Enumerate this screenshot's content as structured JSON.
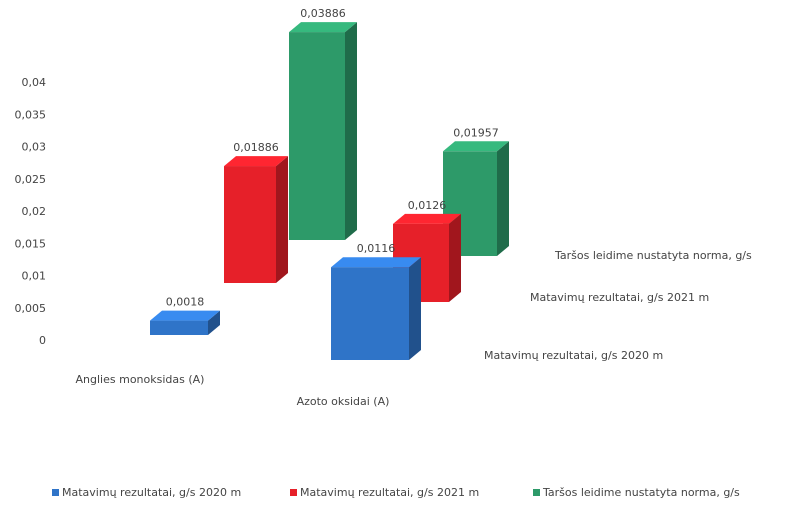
{
  "chart_data": {
    "type": "bar3d",
    "categories": [
      "Anglies monoksidas (A)",
      "Azoto oksidai (A)"
    ],
    "series": [
      {
        "name": "Matavimų rezultatai, g/s 2020 m",
        "color": "#2f74c8",
        "values": [
          0.0018,
          0.0116
        ],
        "value_labels": [
          "0,0018",
          "0,0116"
        ]
      },
      {
        "name": "Matavimų rezultatai, g/s 2021 m",
        "color": "#e62029",
        "values": [
          0.01886,
          0.0126
        ],
        "value_labels": [
          "0,01886",
          "0,0126"
        ]
      },
      {
        "name": "Taršos leidime nustatyta norma, g/s",
        "color": "#2d9a69",
        "values": [
          0.03886,
          0.01957
        ],
        "value_labels": [
          "0,03886",
          "0,01957"
        ]
      }
    ],
    "ylim": [
      0,
      0.04
    ],
    "yticks": [
      0,
      {
        "value": 0.005,
        "label": "0,005"
      },
      {
        "value": 0.01,
        "label": "0,01"
      },
      {
        "value": 0.015,
        "label": "0,015"
      },
      {
        "value": 0.02,
        "label": "0,02"
      },
      {
        "value": 0.025,
        "label": "0,025"
      },
      {
        "value": 0.03,
        "label": "0,03"
      },
      {
        "value": 0.035,
        "label": "0,035"
      },
      {
        "value": 0.04,
        "label": "0,04"
      }
    ]
  }
}
